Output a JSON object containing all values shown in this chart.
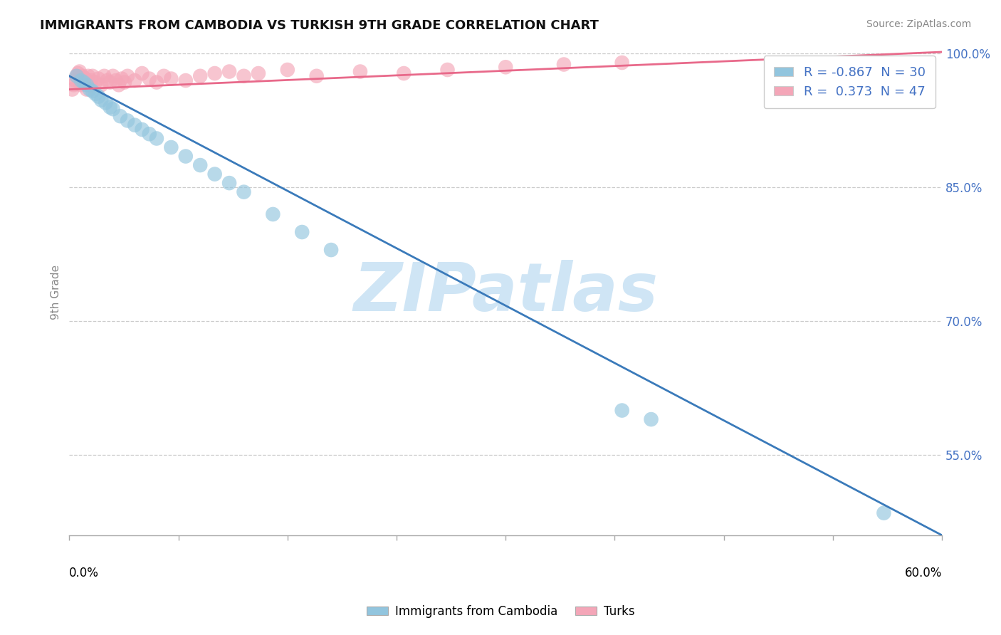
{
  "title": "IMMIGRANTS FROM CAMBODIA VS TURKISH 9TH GRADE CORRELATION CHART",
  "source": "Source: ZipAtlas.com",
  "ylabel": "9th Grade",
  "blue_label": "Immigrants from Cambodia",
  "pink_label": "Turks",
  "blue_R": -0.867,
  "blue_N": 30,
  "pink_R": 0.373,
  "pink_N": 47,
  "blue_color": "#92c5de",
  "pink_color": "#f4a6b8",
  "blue_line_color": "#3a7aba",
  "pink_line_color": "#e8698a",
  "xmin": 0.0,
  "xmax": 0.6,
  "ymin": 0.46,
  "ymax": 1.005,
  "grid_color": "#cccccc",
  "yticks": [
    0.55,
    0.7,
    0.85,
    1.0
  ],
  "ytick_labels": [
    "55.0%",
    "70.0%",
    "85.0%",
    "100.0%"
  ],
  "blue_scatter_x": [
    0.005,
    0.008,
    0.01,
    0.012,
    0.014,
    0.016,
    0.018,
    0.02,
    0.022,
    0.025,
    0.028,
    0.03,
    0.035,
    0.04,
    0.045,
    0.05,
    0.055,
    0.06,
    0.07,
    0.08,
    0.09,
    0.1,
    0.11,
    0.12,
    0.14,
    0.16,
    0.18,
    0.38,
    0.4,
    0.56
  ],
  "blue_scatter_y": [
    0.975,
    0.97,
    0.968,
    0.965,
    0.96,
    0.958,
    0.955,
    0.952,
    0.948,
    0.945,
    0.94,
    0.938,
    0.93,
    0.925,
    0.92,
    0.915,
    0.91,
    0.905,
    0.895,
    0.885,
    0.875,
    0.865,
    0.855,
    0.845,
    0.82,
    0.8,
    0.78,
    0.6,
    0.59,
    0.485
  ],
  "pink_scatter_x": [
    0.002,
    0.003,
    0.004,
    0.005,
    0.006,
    0.007,
    0.008,
    0.009,
    0.01,
    0.011,
    0.012,
    0.013,
    0.014,
    0.015,
    0.016,
    0.018,
    0.02,
    0.022,
    0.024,
    0.026,
    0.028,
    0.03,
    0.032,
    0.034,
    0.036,
    0.038,
    0.04,
    0.045,
    0.05,
    0.055,
    0.06,
    0.065,
    0.07,
    0.08,
    0.09,
    0.1,
    0.11,
    0.12,
    0.13,
    0.15,
    0.17,
    0.2,
    0.23,
    0.26,
    0.3,
    0.34,
    0.38
  ],
  "pink_scatter_y": [
    0.96,
    0.965,
    0.97,
    0.975,
    0.978,
    0.98,
    0.965,
    0.975,
    0.968,
    0.972,
    0.96,
    0.975,
    0.965,
    0.97,
    0.975,
    0.968,
    0.972,
    0.965,
    0.975,
    0.97,
    0.968,
    0.975,
    0.97,
    0.965,
    0.972,
    0.968,
    0.975,
    0.97,
    0.978,
    0.972,
    0.968,
    0.975,
    0.972,
    0.97,
    0.975,
    0.978,
    0.98,
    0.975,
    0.978,
    0.982,
    0.975,
    0.98,
    0.978,
    0.982,
    0.985,
    0.988,
    0.99
  ],
  "blue_trend_x": [
    0.0,
    0.6
  ],
  "blue_trend_y": [
    0.975,
    0.46
  ],
  "pink_trend_x": [
    0.0,
    0.6
  ],
  "pink_trend_y": [
    0.96,
    1.002
  ],
  "watermark_text": "ZIPatlas",
  "watermark_color": "#cfe5f5",
  "title_fontsize": 13,
  "source_fontsize": 10,
  "tick_label_fontsize": 12,
  "legend_fontsize": 13
}
